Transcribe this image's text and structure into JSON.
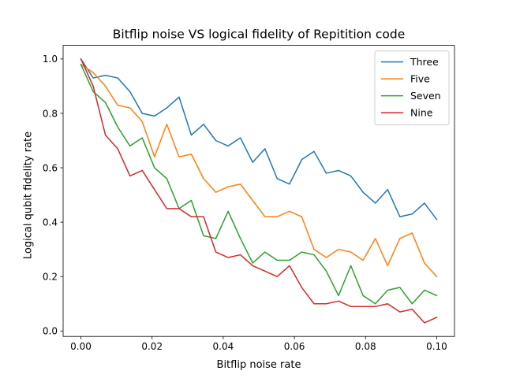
{
  "chart_data": {
    "type": "line",
    "title": "Bitflip noise VS logical fidelity of Repitition code",
    "xlabel": "Bitflip noise rate",
    "ylabel": "Logical qubit fidelity rate",
    "xlim": [
      -0.005,
      0.105
    ],
    "ylim": [
      -0.02,
      1.05
    ],
    "xticks": [
      0.0,
      0.02,
      0.04,
      0.06,
      0.08,
      0.1
    ],
    "xtick_labels": [
      "0.00",
      "0.02",
      "0.04",
      "0.06",
      "0.08",
      "0.10"
    ],
    "yticks": [
      0.0,
      0.2,
      0.4,
      0.6,
      0.8,
      1.0
    ],
    "ytick_labels": [
      "0.0",
      "0.2",
      "0.4",
      "0.6",
      "0.8",
      "1.0"
    ],
    "grid": false,
    "legend_position": "top-right",
    "x": [
      0.0,
      0.00345,
      0.0069,
      0.01034,
      0.01379,
      0.01724,
      0.02069,
      0.02414,
      0.02759,
      0.03103,
      0.03448,
      0.03793,
      0.04138,
      0.04483,
      0.04828,
      0.05172,
      0.05517,
      0.05862,
      0.06207,
      0.06552,
      0.06897,
      0.07241,
      0.07586,
      0.07931,
      0.08276,
      0.08621,
      0.08966,
      0.0931,
      0.09655,
      0.1
    ],
    "series": [
      {
        "name": "Three",
        "color": "#1f77b4",
        "values": [
          1.0,
          0.93,
          0.94,
          0.93,
          0.88,
          0.8,
          0.79,
          0.82,
          0.86,
          0.72,
          0.76,
          0.7,
          0.68,
          0.71,
          0.62,
          0.67,
          0.56,
          0.54,
          0.63,
          0.66,
          0.58,
          0.59,
          0.57,
          0.51,
          0.47,
          0.52,
          0.42,
          0.43,
          0.47,
          0.41
        ]
      },
      {
        "name": "Five",
        "color": "#ff7f0e",
        "values": [
          0.98,
          0.95,
          0.9,
          0.83,
          0.82,
          0.77,
          0.64,
          0.76,
          0.64,
          0.65,
          0.56,
          0.51,
          0.53,
          0.54,
          0.48,
          0.42,
          0.42,
          0.44,
          0.42,
          0.3,
          0.27,
          0.3,
          0.29,
          0.26,
          0.34,
          0.24,
          0.34,
          0.36,
          0.25,
          0.2
        ]
      },
      {
        "name": "Seven",
        "color": "#2ca02c",
        "values": [
          0.98,
          0.88,
          0.84,
          0.75,
          0.68,
          0.71,
          0.6,
          0.56,
          0.45,
          0.48,
          0.35,
          0.34,
          0.44,
          0.34,
          0.25,
          0.29,
          0.26,
          0.26,
          0.29,
          0.28,
          0.22,
          0.13,
          0.24,
          0.13,
          0.1,
          0.15,
          0.16,
          0.1,
          0.15,
          0.13
        ]
      },
      {
        "name": "Nine",
        "color": "#d62728",
        "values": [
          1.0,
          0.9,
          0.72,
          0.67,
          0.57,
          0.59,
          0.52,
          0.45,
          0.45,
          0.42,
          0.42,
          0.29,
          0.27,
          0.28,
          0.24,
          0.22,
          0.2,
          0.24,
          0.16,
          0.1,
          0.1,
          0.11,
          0.09,
          0.09,
          0.09,
          0.1,
          0.07,
          0.08,
          0.03,
          0.05
        ]
      }
    ]
  }
}
